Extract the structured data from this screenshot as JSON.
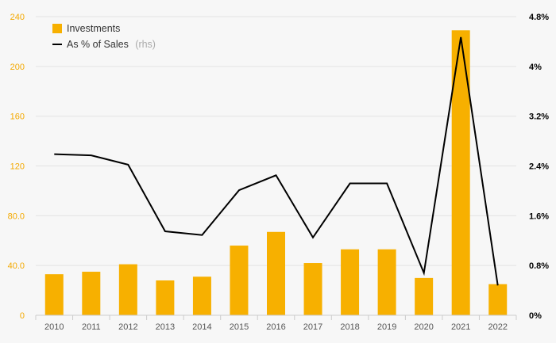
{
  "chart_data": {
    "type": "bar",
    "categories": [
      "2010",
      "2011",
      "2012",
      "2013",
      "2014",
      "2015",
      "2016",
      "2017",
      "2018",
      "2019",
      "2020",
      "2021",
      "2022"
    ],
    "series": [
      {
        "name": "Investments",
        "type": "bar",
        "axis": "left",
        "values": [
          33,
          35,
          41,
          28,
          31,
          56,
          67,
          42,
          53,
          53,
          30,
          229,
          25
        ]
      },
      {
        "name": "As % of Sales",
        "note": "(rhs)",
        "type": "line",
        "axis": "right",
        "values": [
          2.59,
          2.57,
          2.42,
          1.35,
          1.29,
          2.01,
          2.25,
          1.25,
          2.12,
          2.12,
          0.68,
          4.47,
          0.48
        ]
      }
    ],
    "y_left": {
      "min": 0,
      "max": 240,
      "ticks": [
        0,
        40,
        80,
        120,
        160,
        200,
        240
      ],
      "tick_labels": [
        "0",
        "40.0",
        "80.0",
        "120",
        "160",
        "200",
        "240"
      ]
    },
    "y_right": {
      "min": 0,
      "max": 4.8,
      "ticks": [
        0,
        0.8,
        1.6,
        2.4,
        3.2,
        4,
        4.8
      ],
      "tick_labels": [
        "0%",
        "0.8%",
        "1.6%",
        "2.4%",
        "3.2%",
        "4%",
        "4.8%"
      ]
    },
    "grid": true,
    "legend_position": "top-left",
    "colors": {
      "bar": "#f7b000",
      "line": "#000000",
      "left_axis_text": "#f4a900",
      "grid": "#e3e3e3"
    }
  }
}
